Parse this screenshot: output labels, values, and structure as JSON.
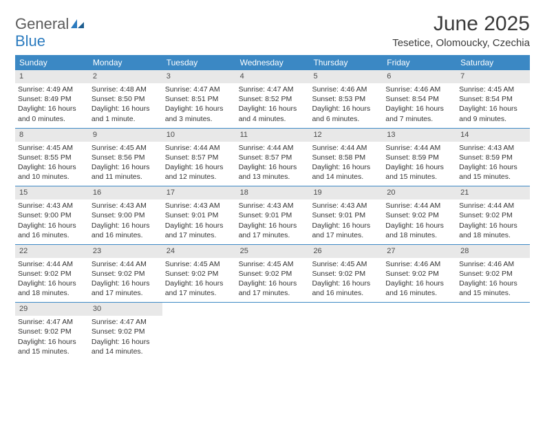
{
  "logo": {
    "general": "General",
    "blue": "Blue"
  },
  "title": "June 2025",
  "location": "Tesetice, Olomoucky, Czechia",
  "colors": {
    "header_bg": "#3b88c4",
    "header_text": "#ffffff",
    "daynum_bg": "#e8e8e8",
    "text": "#333333",
    "rule": "#3b88c4",
    "logo_gray": "#5a5a5a",
    "logo_blue": "#2b7bbf"
  },
  "dayNames": [
    "Sunday",
    "Monday",
    "Tuesday",
    "Wednesday",
    "Thursday",
    "Friday",
    "Saturday"
  ],
  "weeks": [
    [
      {
        "n": "1",
        "sr": "Sunrise: 4:49 AM",
        "ss": "Sunset: 8:49 PM",
        "dl": "Daylight: 16 hours and 0 minutes."
      },
      {
        "n": "2",
        "sr": "Sunrise: 4:48 AM",
        "ss": "Sunset: 8:50 PM",
        "dl": "Daylight: 16 hours and 1 minute."
      },
      {
        "n": "3",
        "sr": "Sunrise: 4:47 AM",
        "ss": "Sunset: 8:51 PM",
        "dl": "Daylight: 16 hours and 3 minutes."
      },
      {
        "n": "4",
        "sr": "Sunrise: 4:47 AM",
        "ss": "Sunset: 8:52 PM",
        "dl": "Daylight: 16 hours and 4 minutes."
      },
      {
        "n": "5",
        "sr": "Sunrise: 4:46 AM",
        "ss": "Sunset: 8:53 PM",
        "dl": "Daylight: 16 hours and 6 minutes."
      },
      {
        "n": "6",
        "sr": "Sunrise: 4:46 AM",
        "ss": "Sunset: 8:54 PM",
        "dl": "Daylight: 16 hours and 7 minutes."
      },
      {
        "n": "7",
        "sr": "Sunrise: 4:45 AM",
        "ss": "Sunset: 8:54 PM",
        "dl": "Daylight: 16 hours and 9 minutes."
      }
    ],
    [
      {
        "n": "8",
        "sr": "Sunrise: 4:45 AM",
        "ss": "Sunset: 8:55 PM",
        "dl": "Daylight: 16 hours and 10 minutes."
      },
      {
        "n": "9",
        "sr": "Sunrise: 4:45 AM",
        "ss": "Sunset: 8:56 PM",
        "dl": "Daylight: 16 hours and 11 minutes."
      },
      {
        "n": "10",
        "sr": "Sunrise: 4:44 AM",
        "ss": "Sunset: 8:57 PM",
        "dl": "Daylight: 16 hours and 12 minutes."
      },
      {
        "n": "11",
        "sr": "Sunrise: 4:44 AM",
        "ss": "Sunset: 8:57 PM",
        "dl": "Daylight: 16 hours and 13 minutes."
      },
      {
        "n": "12",
        "sr": "Sunrise: 4:44 AM",
        "ss": "Sunset: 8:58 PM",
        "dl": "Daylight: 16 hours and 14 minutes."
      },
      {
        "n": "13",
        "sr": "Sunrise: 4:44 AM",
        "ss": "Sunset: 8:59 PM",
        "dl": "Daylight: 16 hours and 15 minutes."
      },
      {
        "n": "14",
        "sr": "Sunrise: 4:43 AM",
        "ss": "Sunset: 8:59 PM",
        "dl": "Daylight: 16 hours and 15 minutes."
      }
    ],
    [
      {
        "n": "15",
        "sr": "Sunrise: 4:43 AM",
        "ss": "Sunset: 9:00 PM",
        "dl": "Daylight: 16 hours and 16 minutes."
      },
      {
        "n": "16",
        "sr": "Sunrise: 4:43 AM",
        "ss": "Sunset: 9:00 PM",
        "dl": "Daylight: 16 hours and 16 minutes."
      },
      {
        "n": "17",
        "sr": "Sunrise: 4:43 AM",
        "ss": "Sunset: 9:01 PM",
        "dl": "Daylight: 16 hours and 17 minutes."
      },
      {
        "n": "18",
        "sr": "Sunrise: 4:43 AM",
        "ss": "Sunset: 9:01 PM",
        "dl": "Daylight: 16 hours and 17 minutes."
      },
      {
        "n": "19",
        "sr": "Sunrise: 4:43 AM",
        "ss": "Sunset: 9:01 PM",
        "dl": "Daylight: 16 hours and 17 minutes."
      },
      {
        "n": "20",
        "sr": "Sunrise: 4:44 AM",
        "ss": "Sunset: 9:02 PM",
        "dl": "Daylight: 16 hours and 18 minutes."
      },
      {
        "n": "21",
        "sr": "Sunrise: 4:44 AM",
        "ss": "Sunset: 9:02 PM",
        "dl": "Daylight: 16 hours and 18 minutes."
      }
    ],
    [
      {
        "n": "22",
        "sr": "Sunrise: 4:44 AM",
        "ss": "Sunset: 9:02 PM",
        "dl": "Daylight: 16 hours and 18 minutes."
      },
      {
        "n": "23",
        "sr": "Sunrise: 4:44 AM",
        "ss": "Sunset: 9:02 PM",
        "dl": "Daylight: 16 hours and 17 minutes."
      },
      {
        "n": "24",
        "sr": "Sunrise: 4:45 AM",
        "ss": "Sunset: 9:02 PM",
        "dl": "Daylight: 16 hours and 17 minutes."
      },
      {
        "n": "25",
        "sr": "Sunrise: 4:45 AM",
        "ss": "Sunset: 9:02 PM",
        "dl": "Daylight: 16 hours and 17 minutes."
      },
      {
        "n": "26",
        "sr": "Sunrise: 4:45 AM",
        "ss": "Sunset: 9:02 PM",
        "dl": "Daylight: 16 hours and 16 minutes."
      },
      {
        "n": "27",
        "sr": "Sunrise: 4:46 AM",
        "ss": "Sunset: 9:02 PM",
        "dl": "Daylight: 16 hours and 16 minutes."
      },
      {
        "n": "28",
        "sr": "Sunrise: 4:46 AM",
        "ss": "Sunset: 9:02 PM",
        "dl": "Daylight: 16 hours and 15 minutes."
      }
    ],
    [
      {
        "n": "29",
        "sr": "Sunrise: 4:47 AM",
        "ss": "Sunset: 9:02 PM",
        "dl": "Daylight: 16 hours and 15 minutes."
      },
      {
        "n": "30",
        "sr": "Sunrise: 4:47 AM",
        "ss": "Sunset: 9:02 PM",
        "dl": "Daylight: 16 hours and 14 minutes."
      },
      {
        "empty": true
      },
      {
        "empty": true
      },
      {
        "empty": true
      },
      {
        "empty": true
      },
      {
        "empty": true
      }
    ]
  ]
}
